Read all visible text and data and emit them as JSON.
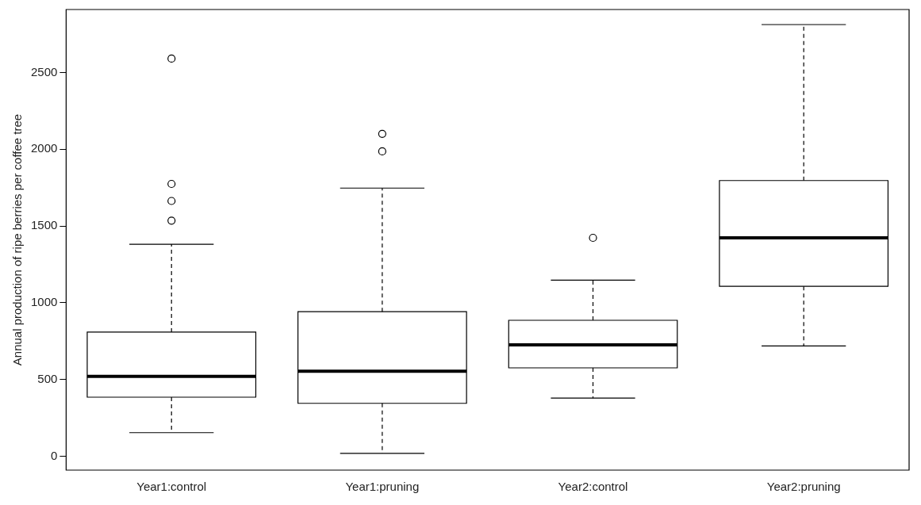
{
  "chart_data": {
    "type": "box",
    "ylabel": "Annual production of ripe berries per coffee tree",
    "categories": [
      "Year1:control",
      "Year1:pruning",
      "Year2:control",
      "Year2:pruning"
    ],
    "color": "#000000",
    "boxes": [
      {
        "low": 154,
        "q1": 385,
        "median": 520,
        "q3": 809,
        "high": 1381,
        "outliers": [
          1535,
          1663,
          1774,
          2590
        ]
      },
      {
        "low": 19,
        "q1": 345,
        "median": 554,
        "q3": 942,
        "high": 1747,
        "outliers": [
          1986,
          2100
        ]
      },
      {
        "low": 379,
        "q1": 576,
        "median": 726,
        "q3": 886,
        "high": 1147,
        "outliers": [
          1423
        ]
      },
      {
        "low": 719,
        "q1": 1107,
        "median": 1423,
        "q3": 1796,
        "high": 2812
      }
    ],
    "ylim": [
      -90,
      2910
    ],
    "yticks": [
      0,
      500,
      1000,
      1500,
      2000,
      2500
    ]
  }
}
